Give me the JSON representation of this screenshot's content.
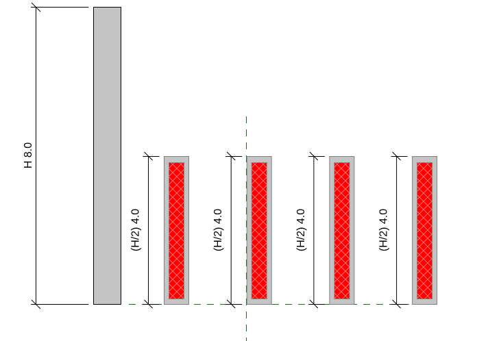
{
  "total_height_label": "H 8.0",
  "column_height_labels": [
    "(H/2) 4.0",
    "(H/2) 4.0",
    "(H/2) 4.0",
    "(H/2) 4.0"
  ],
  "colors": {
    "wall": "#c4c4c4",
    "wall_edge": "#808080",
    "core": "#ff0000",
    "hatch": "#ff8080",
    "reference_line": "#1a6b1a",
    "dimension": "#000000"
  }
}
